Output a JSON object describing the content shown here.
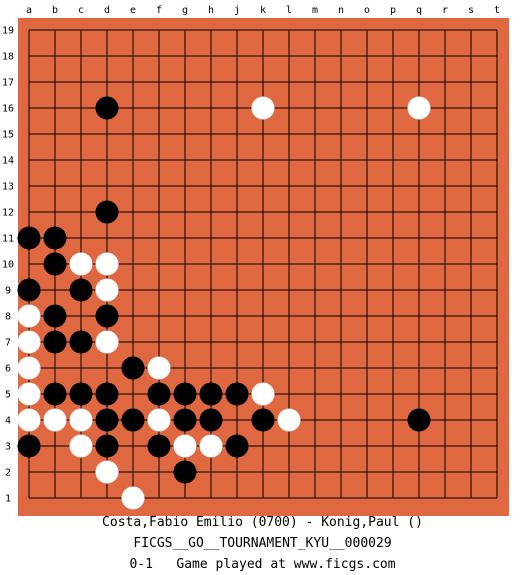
{
  "board": {
    "size": 19,
    "board_color": "#e06840",
    "line_color": "#000000",
    "column_labels": [
      "a",
      "b",
      "c",
      "d",
      "e",
      "f",
      "g",
      "h",
      "j",
      "k",
      "l",
      "m",
      "n",
      "o",
      "p",
      "q",
      "r",
      "s",
      "t"
    ],
    "row_labels": [
      "19",
      "18",
      "17",
      "16",
      "15",
      "14",
      "13",
      "12",
      "11",
      "10",
      "9",
      "8",
      "7",
      "6",
      "5",
      "4",
      "3",
      "2",
      "1"
    ],
    "stones": {
      "black": [
        "d16",
        "d12",
        "a11",
        "b11",
        "b10",
        "a9",
        "c9",
        "b8",
        "d8",
        "b7",
        "c7",
        "e6",
        "b5",
        "c5",
        "d5",
        "f5",
        "g5",
        "h5",
        "j5",
        "d4",
        "e4",
        "g4",
        "h4",
        "k4",
        "q4",
        "a3",
        "d3",
        "f3",
        "j3",
        "g2"
      ],
      "white": [
        "k16",
        "q16",
        "c10",
        "d10",
        "d9",
        "a8",
        "a7",
        "d7",
        "a6",
        "f6",
        "a5",
        "k5",
        "a4",
        "b4",
        "c4",
        "f4",
        "l4",
        "c3",
        "g3",
        "h3",
        "d2",
        "e1"
      ]
    }
  },
  "footer": {
    "players": "Costa,Fabio Emilio (0700) - Konig,Paul ()",
    "tournament": "FICGS__GO__TOURNAMENT_KYU__000029",
    "result_line": "0-1   Game played at www.ficgs.com"
  }
}
